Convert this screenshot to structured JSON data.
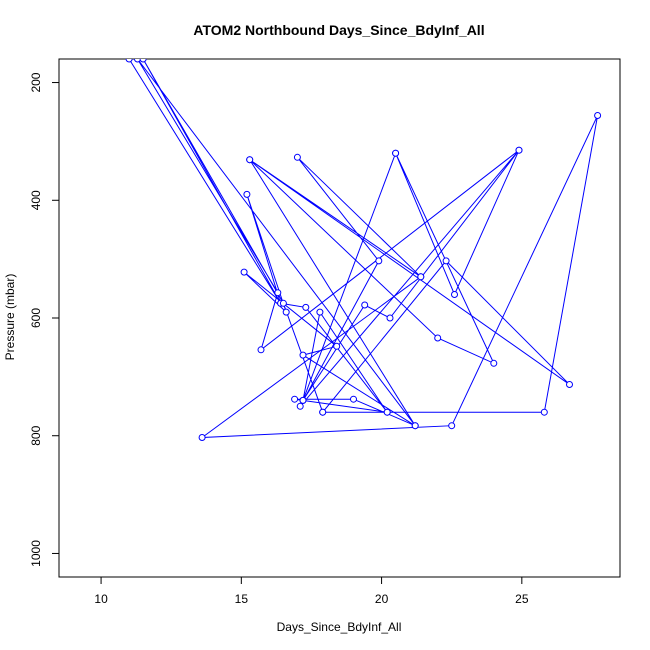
{
  "chart_data": {
    "type": "line",
    "title": "ATOM2 Northbound Days_Since_BdyInf_All",
    "xlabel": "Days_Since_BdyInf_All",
    "ylabel": "Pressure (mbar)",
    "xlim": [
      8.5,
      28.5
    ],
    "ylim": [
      1040,
      160
    ],
    "y_axis_inverted": true,
    "x_ticks": [
      10,
      15,
      20,
      25
    ],
    "y_ticks": [
      200,
      400,
      600,
      800,
      1000
    ],
    "x_tick_labels": [
      "10",
      "15",
      "20",
      "25"
    ],
    "y_tick_labels": [
      "200",
      "400",
      "600",
      "800",
      "1000"
    ],
    "marker": "open-circle",
    "line_style": "both",
    "color": "#0000ff",
    "grid": false,
    "legend": "none",
    "series": [
      {
        "points": [
          [
            11.0,
            160
          ],
          [
            16.4,
            575
          ],
          [
            15.2,
            390
          ],
          [
            16.6,
            590
          ],
          [
            15.1,
            522
          ],
          [
            18.4,
            648
          ],
          [
            17.2,
            663
          ],
          [
            21.2,
            783
          ],
          [
            15.3,
            331
          ],
          [
            22.0,
            634
          ],
          [
            24.0,
            677
          ],
          [
            20.5,
            320
          ],
          [
            17.2,
            740
          ],
          [
            19.4,
            578
          ],
          [
            20.3,
            600
          ],
          [
            24.9,
            315
          ],
          [
            22.6,
            560
          ],
          [
            20.5,
            320
          ],
          [
            17.2,
            740
          ],
          [
            17.8,
            590
          ],
          [
            20.2,
            760
          ],
          [
            16.9,
            738
          ],
          [
            19.0,
            738
          ],
          [
            21.2,
            783
          ],
          [
            11.3,
            160
          ],
          [
            16.3,
            557
          ],
          [
            15.7,
            654
          ],
          [
            24.9,
            315
          ],
          [
            17.1,
            750
          ],
          [
            19.9,
            503
          ],
          [
            17.0,
            327
          ],
          [
            21.4,
            530
          ],
          [
            13.6,
            803
          ],
          [
            22.5,
            783
          ],
          [
            27.7,
            256
          ],
          [
            25.8,
            760
          ],
          [
            17.9,
            760
          ],
          [
            20.2,
            760
          ],
          [
            17.3,
            582
          ],
          [
            16.4,
            575
          ],
          [
            11.5,
            160
          ],
          [
            16.5,
            575
          ],
          [
            17.9,
            760
          ],
          [
            22.3,
            503
          ],
          [
            26.7,
            713
          ],
          [
            15.3,
            331
          ],
          [
            21.4,
            530
          ]
        ]
      }
    ]
  }
}
